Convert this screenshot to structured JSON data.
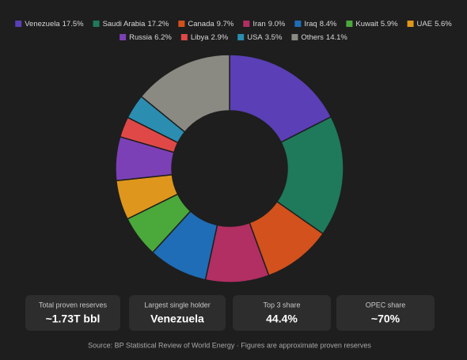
{
  "chart_data": {
    "type": "donut",
    "categories": [
      "Venezuela",
      "Saudi Arabia",
      "Canada",
      "Iran",
      "Iraq",
      "Kuwait",
      "UAE",
      "Russia",
      "Libya",
      "USA",
      "Others"
    ],
    "values": [
      17.5,
      17.2,
      9.7,
      9.0,
      8.4,
      5.9,
      5.6,
      6.2,
      2.9,
      3.5,
      14.1
    ],
    "value_labels": [
      "17.5%",
      "17.2%",
      "9.7%",
      "9.0%",
      "8.4%",
      "5.9%",
      "5.6%",
      "6.2%",
      "2.9%",
      "3.5%",
      "14.1%"
    ],
    "colors": [
      "#5a3fb6",
      "#1e7a5b",
      "#d2511c",
      "#b12f62",
      "#1f6db6",
      "#4ba83b",
      "#df961c",
      "#7c40b6",
      "#e04848",
      "#2b8db0",
      "#8a8a83"
    ],
    "legend": "top"
  },
  "stats": [
    {
      "label": "Total proven reserves",
      "value": "~1.73T bbl"
    },
    {
      "label": "Largest single holder",
      "value": "Venezuela"
    },
    {
      "label": "Top 3 share",
      "value": "44.4%"
    },
    {
      "label": "OPEC share",
      "value": "~70%"
    }
  ],
  "source": "Source: BP Statistical Review of World Energy · Figures are approximate proven reserves"
}
